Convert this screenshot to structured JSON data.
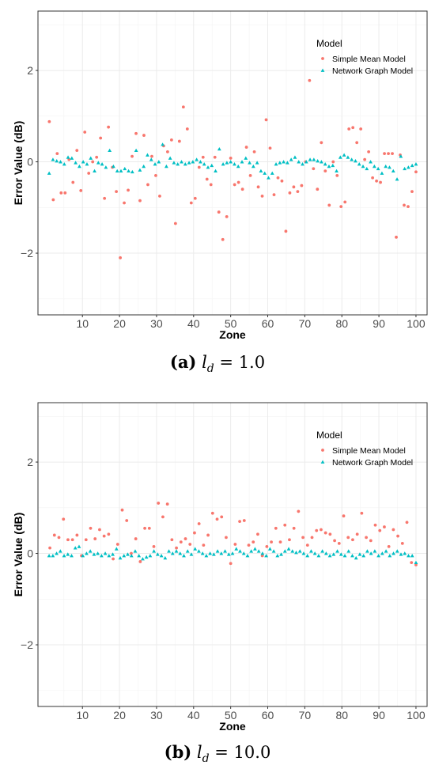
{
  "colors": {
    "simple_mean": "#F8766D",
    "network_graph": "#00BFC4",
    "grid": "#ebebeb",
    "panel_border": "#333333"
  },
  "captions": [
    {
      "letter": "(a)",
      "symbol": "l",
      "sub": "d",
      "eq": " = 1.0"
    },
    {
      "letter": "(b)",
      "symbol": "l",
      "sub": "d",
      "eq": " = 10.0"
    }
  ],
  "chart_data": [
    {
      "type": "scatter",
      "title": "",
      "xlabel": "Zone",
      "ylabel": "Error Value (dB)",
      "xlim": [
        -2,
        103
      ],
      "ylim": [
        -3.35,
        3.3
      ],
      "xticks": [
        10,
        20,
        30,
        40,
        50,
        60,
        70,
        80,
        90,
        100
      ],
      "yticks": [
        -2,
        0,
        2
      ],
      "ytick_labels": [
        "−2",
        "0",
        "2"
      ],
      "grid": true,
      "legend": {
        "title": "Model",
        "placement": "top-right",
        "entries": [
          "Simple Mean Model",
          "Network Graph Model"
        ]
      },
      "series": [
        {
          "name": "Simple Mean Model",
          "marker": "circle",
          "y": [
            0.88,
            -0.83,
            0.18,
            -0.68,
            -0.68,
            0.05,
            -0.45,
            0.25,
            -0.63,
            0.65,
            -0.25,
            0.0,
            0.1,
            0.52,
            -0.8,
            0.76,
            -0.12,
            -0.65,
            -2.1,
            -0.9,
            -0.62,
            0.12,
            0.62,
            -0.85,
            0.58,
            -0.5,
            0.12,
            -0.3,
            -0.75,
            0.35,
            0.22,
            0.48,
            -1.35,
            0.45,
            1.2,
            0.72,
            -0.9,
            -0.8,
            -0.12,
            0.1,
            -0.38,
            -0.5,
            0.1,
            -1.1,
            -1.7,
            -1.2,
            0.08,
            -0.5,
            -0.45,
            -0.6,
            0.32,
            -0.3,
            0.22,
            -0.55,
            -0.75,
            0.92,
            0.3,
            -0.72,
            -0.35,
            -0.42,
            -1.52,
            -0.68,
            -0.55,
            -0.65,
            -0.52,
            0.0,
            1.78,
            -0.15,
            -0.6,
            0.42,
            -0.2,
            -0.95,
            0.0,
            -0.3,
            -0.98,
            -0.88,
            0.72,
            0.75,
            0.42,
            0.72,
            0.05,
            0.22,
            -0.35,
            -0.42,
            -0.45,
            0.18,
            0.18,
            0.18,
            -1.65,
            0.15,
            -0.95,
            -0.98,
            -0.65,
            -0.22
          ]
        },
        {
          "name": "Network Graph Model",
          "marker": "triangle",
          "y": [
            -0.25,
            0.05,
            0.02,
            0.0,
            -0.05,
            0.1,
            0.08,
            -0.02,
            -0.1,
            0.0,
            -0.05,
            0.08,
            -0.2,
            -0.02,
            -0.05,
            -0.12,
            0.25,
            -0.1,
            -0.2,
            -0.2,
            -0.15,
            -0.2,
            -0.22,
            0.25,
            -0.18,
            -0.1,
            0.15,
            0.05,
            -0.05,
            0.0,
            0.38,
            -0.1,
            0.08,
            -0.02,
            -0.05,
            0.0,
            -0.05,
            -0.02,
            0.0,
            0.05,
            0.0,
            -0.05,
            -0.12,
            -0.08,
            -0.2,
            0.28,
            -0.05,
            -0.02,
            0.0,
            -0.05,
            -0.1,
            0.0,
            0.08,
            -0.02,
            -0.1,
            -0.02,
            -0.2,
            -0.25,
            -0.35,
            -0.25,
            -0.05,
            -0.02,
            0.0,
            -0.02,
            0.05,
            0.1,
            0.0,
            -0.05,
            0.0,
            0.05,
            0.05,
            0.02,
            0.0,
            -0.05,
            -0.1,
            -0.08,
            -0.2,
            0.1,
            0.15,
            0.1,
            0.05,
            0.02,
            -0.05,
            -0.1,
            -0.15,
            0.0,
            -0.1,
            -0.15,
            -0.25,
            -0.1,
            -0.12,
            -0.2,
            -0.38,
            0.12,
            -0.15,
            -0.12,
            -0.08,
            -0.05
          ]
        }
      ]
    },
    {
      "type": "scatter",
      "title": "",
      "xlabel": "Zone",
      "ylabel": "Error Value (dB)",
      "xlim": [
        -2,
        103
      ],
      "ylim": [
        -3.35,
        3.3
      ],
      "xticks": [
        10,
        20,
        30,
        40,
        50,
        60,
        70,
        80,
        90,
        100
      ],
      "yticks": [
        -2,
        0,
        2
      ],
      "ytick_labels": [
        "−2",
        "0",
        "2"
      ],
      "grid": true,
      "legend": {
        "title": "Model",
        "placement": "top-right",
        "entries": [
          "Simple Mean Model",
          "Network Graph Model"
        ]
      },
      "series": [
        {
          "name": "Simple Mean Model",
          "marker": "circle",
          "y": [
            0.12,
            0.4,
            0.35,
            0.75,
            0.3,
            0.3,
            0.4,
            -0.05,
            0.3,
            0.55,
            0.32,
            0.52,
            0.38,
            0.42,
            -0.12,
            0.2,
            0.95,
            0.72,
            0.0,
            0.32,
            -0.18,
            0.55,
            0.55,
            0.15,
            1.1,
            0.8,
            1.08,
            0.3,
            0.12,
            0.25,
            0.32,
            0.2,
            0.45,
            0.65,
            0.18,
            0.4,
            0.88,
            0.75,
            0.8,
            0.35,
            -0.22,
            0.2,
            0.7,
            0.72,
            0.18,
            0.25,
            0.42,
            -0.05,
            0.15,
            0.25,
            0.55,
            0.25,
            0.62,
            0.3,
            0.55,
            0.92,
            0.35,
            0.18,
            0.35,
            0.5,
            0.52,
            0.45,
            0.42,
            0.28,
            0.22,
            0.82,
            0.35,
            0.3,
            0.42,
            0.88,
            0.35,
            0.28,
            0.62,
            0.5,
            0.58,
            0.15,
            0.52,
            0.38,
            0.22,
            0.68,
            -0.2,
            -0.25
          ]
        },
        {
          "name": "Network Graph Model",
          "marker": "triangle",
          "y": [
            -0.05,
            -0.05,
            0.0,
            0.05,
            -0.05,
            -0.02,
            -0.05,
            0.12,
            0.15,
            -0.05,
            0.0,
            0.05,
            -0.02,
            0.0,
            -0.05,
            0.0,
            -0.05,
            -0.02,
            0.1,
            -0.1,
            -0.05,
            -0.02,
            -0.05,
            0.05,
            -0.05,
            -0.12,
            -0.08,
            -0.05,
            0.05,
            -0.02,
            -0.05,
            -0.1,
            0.05,
            0.0,
            0.05,
            0.0,
            -0.05,
            0.05,
            -0.02,
            0.1,
            0.05,
            0.0,
            -0.05,
            0.0,
            -0.02,
            0.05,
            0.0,
            0.05,
            -0.02,
            0.0,
            0.1,
            0.05,
            0.0,
            -0.05,
            0.05,
            0.1,
            0.05,
            0.0,
            -0.05,
            0.1,
            0.05,
            -0.05,
            -0.02,
            0.05,
            0.1,
            0.05,
            0.02,
            0.05,
            0.0,
            -0.05,
            0.05,
            0.0,
            -0.05,
            0.05,
            0.0,
            -0.05,
            -0.02,
            0.05,
            -0.02,
            -0.05,
            0.05,
            -0.05,
            -0.1,
            -0.02,
            -0.05,
            0.05,
            0.0,
            0.05,
            -0.05,
            0.0,
            0.05,
            -0.05,
            0.0,
            0.05,
            -0.02,
            0.0,
            -0.05,
            -0.05,
            -0.2
          ]
        }
      ]
    }
  ]
}
